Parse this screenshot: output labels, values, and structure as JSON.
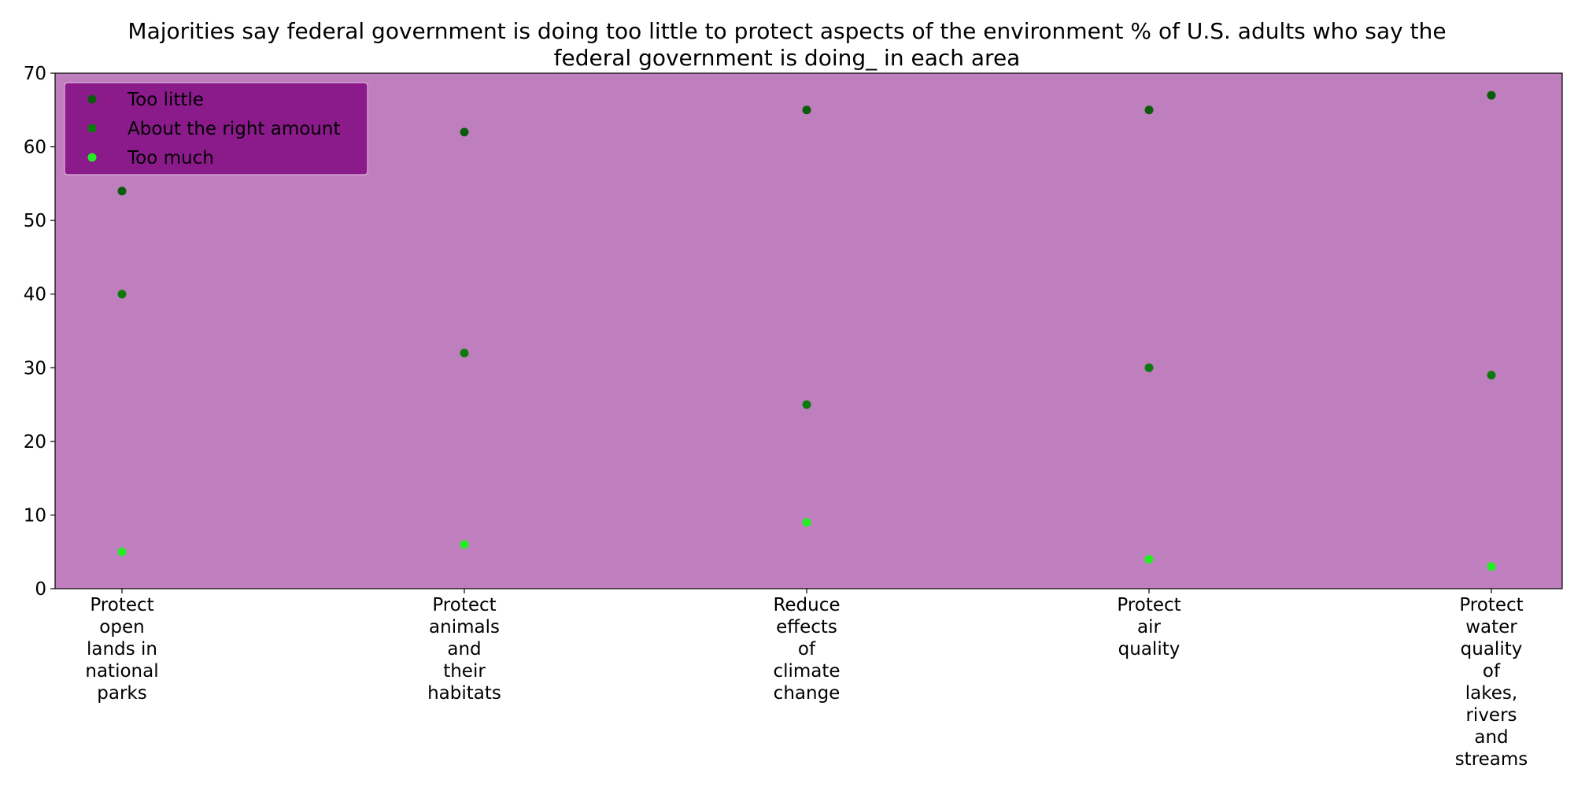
{
  "chart_data": {
    "type": "scatter",
    "title_lines": [
      "Majorities say federal government is doing too little to protect aspects of the environment % of U.S. adults who say the",
      "federal government is doing_ in each area"
    ],
    "xlabel": "",
    "ylabel": "",
    "categories": [
      [
        "Protect",
        "open",
        "lands in",
        "national",
        "parks"
      ],
      [
        "Protect",
        "animals",
        "and",
        "their",
        "habitats"
      ],
      [
        "Reduce",
        "effects",
        "of",
        "climate",
        "change"
      ],
      [
        "Protect",
        "air",
        "quality"
      ],
      [
        "Protect",
        "water",
        "quality",
        "of",
        "lakes,",
        "rivers",
        "and",
        "streams"
      ]
    ],
    "series": [
      {
        "name": "Too little",
        "color": "#0a5c0a",
        "values": [
          54,
          62,
          65,
          65,
          67
        ]
      },
      {
        "name": "About the right amount",
        "color": "#0d7a0d",
        "values": [
          40,
          32,
          25,
          30,
          29
        ]
      },
      {
        "name": "Too much",
        "color": "#22ee22",
        "values": [
          5,
          6,
          9,
          4,
          3
        ]
      }
    ],
    "ylim": [
      0,
      70
    ],
    "yticks": [
      "0",
      "10",
      "20",
      "30",
      "40",
      "50",
      "60",
      "70"
    ],
    "grid": false,
    "legend_position": "top-left",
    "plot_background": "#bf7fbf",
    "legend_background": "#8b1a8b"
  }
}
